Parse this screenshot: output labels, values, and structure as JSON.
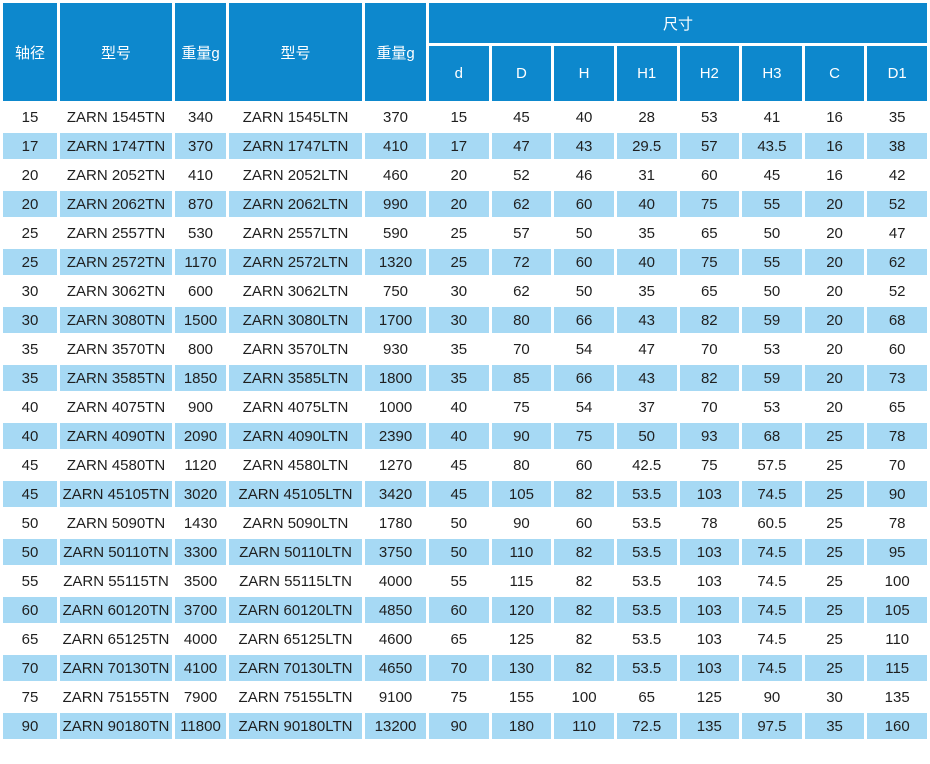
{
  "colors": {
    "header_bg": "#0d88cd",
    "stripe_bg": "#a6d9f4",
    "text": "#1f1f1f"
  },
  "table": {
    "header": {
      "shaft_diameter": "轴径",
      "model_1": "型号",
      "weight_1": "重量g",
      "model_2": "型号",
      "weight_2": "重量g",
      "dimensions_group": "尺寸",
      "dim_cols": [
        "d",
        "D",
        "H",
        "H1",
        "H2",
        "H3",
        "C",
        "D1"
      ]
    },
    "rows": [
      [
        "15",
        "ZARN 1545TN",
        "340",
        "ZARN 1545LTN",
        "370",
        "15",
        "45",
        "40",
        "28",
        "53",
        "41",
        "16",
        "35"
      ],
      [
        "17",
        "ZARN 1747TN",
        "370",
        "ZARN 1747LTN",
        "410",
        "17",
        "47",
        "43",
        "29.5",
        "57",
        "43.5",
        "16",
        "38"
      ],
      [
        "20",
        "ZARN 2052TN",
        "410",
        "ZARN 2052LTN",
        "460",
        "20",
        "52",
        "46",
        "31",
        "60",
        "45",
        "16",
        "42"
      ],
      [
        "20",
        "ZARN 2062TN",
        "870",
        "ZARN 2062LTN",
        "990",
        "20",
        "62",
        "60",
        "40",
        "75",
        "55",
        "20",
        "52"
      ],
      [
        "25",
        "ZARN 2557TN",
        "530",
        "ZARN 2557LTN",
        "590",
        "25",
        "57",
        "50",
        "35",
        "65",
        "50",
        "20",
        "47"
      ],
      [
        "25",
        "ZARN 2572TN",
        "1170",
        "ZARN 2572LTN",
        "1320",
        "25",
        "72",
        "60",
        "40",
        "75",
        "55",
        "20",
        "62"
      ],
      [
        "30",
        "ZARN 3062TN",
        "600",
        "ZARN 3062LTN",
        "750",
        "30",
        "62",
        "50",
        "35",
        "65",
        "50",
        "20",
        "52"
      ],
      [
        "30",
        "ZARN 3080TN",
        "1500",
        "ZARN 3080LTN",
        "1700",
        "30",
        "80",
        "66",
        "43",
        "82",
        "59",
        "20",
        "68"
      ],
      [
        "35",
        "ZARN 3570TN",
        "800",
        "ZARN 3570LTN",
        "930",
        "35",
        "70",
        "54",
        "47",
        "70",
        "53",
        "20",
        "60"
      ],
      [
        "35",
        "ZARN 3585TN",
        "1850",
        "ZARN 3585LTN",
        "1800",
        "35",
        "85",
        "66",
        "43",
        "82",
        "59",
        "20",
        "73"
      ],
      [
        "40",
        "ZARN 4075TN",
        "900",
        "ZARN 4075LTN",
        "1000",
        "40",
        "75",
        "54",
        "37",
        "70",
        "53",
        "20",
        "65"
      ],
      [
        "40",
        "ZARN 4090TN",
        "2090",
        "ZARN 4090LTN",
        "2390",
        "40",
        "90",
        "75",
        "50",
        "93",
        "68",
        "25",
        "78"
      ],
      [
        "45",
        "ZARN 4580TN",
        "1120",
        "ZARN 4580LTN",
        "1270",
        "45",
        "80",
        "60",
        "42.5",
        "75",
        "57.5",
        "25",
        "70"
      ],
      [
        "45",
        "ZARN 45105TN",
        "3020",
        "ZARN 45105LTN",
        "3420",
        "45",
        "105",
        "82",
        "53.5",
        "103",
        "74.5",
        "25",
        "90"
      ],
      [
        "50",
        "ZARN 5090TN",
        "1430",
        "ZARN 5090LTN",
        "1780",
        "50",
        "90",
        "60",
        "53.5",
        "78",
        "60.5",
        "25",
        "78"
      ],
      [
        "50",
        "ZARN 50110TN",
        "3300",
        "ZARN 50110LTN",
        "3750",
        "50",
        "110",
        "82",
        "53.5",
        "103",
        "74.5",
        "25",
        "95"
      ],
      [
        "55",
        "ZARN 55115TN",
        "3500",
        "ZARN 55115LTN",
        "4000",
        "55",
        "115",
        "82",
        "53.5",
        "103",
        "74.5",
        "25",
        "100"
      ],
      [
        "60",
        "ZARN 60120TN",
        "3700",
        "ZARN 60120LTN",
        "4850",
        "60",
        "120",
        "82",
        "53.5",
        "103",
        "74.5",
        "25",
        "105"
      ],
      [
        "65",
        "ZARN 65125TN",
        "4000",
        "ZARN 65125LTN",
        "4600",
        "65",
        "125",
        "82",
        "53.5",
        "103",
        "74.5",
        "25",
        "110"
      ],
      [
        "70",
        "ZARN 70130TN",
        "4100",
        "ZARN 70130LTN",
        "4650",
        "70",
        "130",
        "82",
        "53.5",
        "103",
        "74.5",
        "25",
        "115"
      ],
      [
        "75",
        "ZARN 75155TN",
        "7900",
        "ZARN 75155LTN",
        "9100",
        "75",
        "155",
        "100",
        "65",
        "125",
        "90",
        "30",
        "135"
      ],
      [
        "90",
        "ZARN 90180TN",
        "11800",
        "ZARN 90180LTN",
        "13200",
        "90",
        "180",
        "110",
        "72.5",
        "135",
        "97.5",
        "35",
        "160"
      ]
    ]
  }
}
